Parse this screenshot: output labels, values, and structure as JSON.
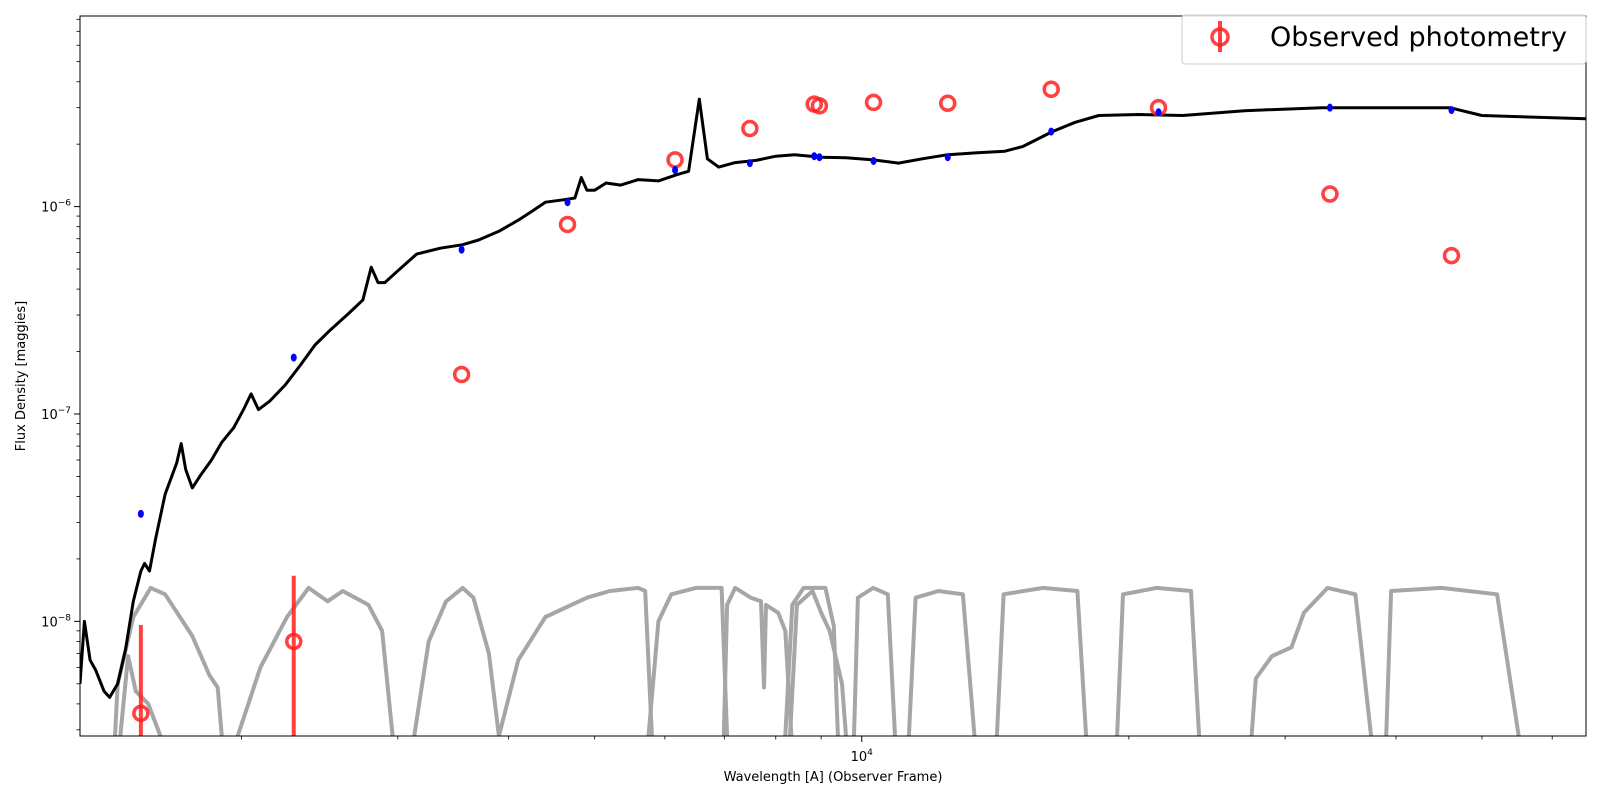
{
  "chart_data": {
    "type": "scatter",
    "xlabel": "Wavelength [A] (Observer Frame)",
    "ylabel": "Flux Density [maggies]",
    "xscale": "log",
    "yscale": "log",
    "xlim": [
      1315,
      65500
    ],
    "ylim": [
      2.8e-09,
      8.3e-06
    ],
    "x_tick_labels": [
      {
        "value": 10000,
        "label": "10",
        "sup": "4"
      }
    ],
    "y_tick_labels": [
      {
        "value": 1e-08,
        "label": "10",
        "sup": "−8"
      },
      {
        "value": 1e-07,
        "label": "10",
        "sup": "−7"
      },
      {
        "value": 1e-06,
        "label": "10",
        "sup": "−6"
      }
    ],
    "legend": {
      "placement": "top-right",
      "entries": [
        {
          "label": "Observed photometry",
          "color": "#ff2020"
        }
      ]
    },
    "colors": {
      "observed": "#ff2020",
      "model_photometry": "#0000ff",
      "model_spectrum": "#000000",
      "filters": "#a6a6a6"
    },
    "observed_photometry": [
      {
        "x": 1540,
        "y": 3.6e-09,
        "yerr_low": 3.6e-09,
        "yerr_high": 6e-09
      },
      {
        "x": 2290,
        "y": 8e-09,
        "yerr_low": 5.2e-09,
        "yerr_high": 8.6e-09
      },
      {
        "x": 3540,
        "y": 1.55e-07,
        "yerr_low": 0,
        "yerr_high": 0
      },
      {
        "x": 4660,
        "y": 8.2e-07,
        "yerr_low": 0,
        "yerr_high": 0
      },
      {
        "x": 6160,
        "y": 1.68e-06,
        "yerr_low": 0,
        "yerr_high": 0
      },
      {
        "x": 7480,
        "y": 2.38e-06,
        "yerr_low": 0,
        "yerr_high": 0
      },
      {
        "x": 8840,
        "y": 3.12e-06,
        "yerr_low": 0,
        "yerr_high": 0
      },
      {
        "x": 8960,
        "y": 3.06e-06,
        "yerr_low": 0,
        "yerr_high": 0
      },
      {
        "x": 10310,
        "y": 3.18e-06,
        "yerr_low": 0,
        "yerr_high": 0
      },
      {
        "x": 12500,
        "y": 3.15e-06,
        "yerr_low": 0,
        "yerr_high": 0
      },
      {
        "x": 16350,
        "y": 3.68e-06,
        "yerr_low": 0,
        "yerr_high": 0
      },
      {
        "x": 21600,
        "y": 3e-06,
        "yerr_low": 0,
        "yerr_high": 0
      },
      {
        "x": 33700,
        "y": 1.15e-06,
        "yerr_low": 0,
        "yerr_high": 0
      },
      {
        "x": 46200,
        "y": 5.8e-07,
        "yerr_low": 0,
        "yerr_high": 0
      }
    ],
    "model_photometry": [
      {
        "x": 1540,
        "y": 3.3e-08
      },
      {
        "x": 2290,
        "y": 1.87e-07
      },
      {
        "x": 3540,
        "y": 6.2e-07
      },
      {
        "x": 4660,
        "y": 1.05e-06
      },
      {
        "x": 6160,
        "y": 1.5e-06
      },
      {
        "x": 7480,
        "y": 1.62e-06
      },
      {
        "x": 8840,
        "y": 1.75e-06
      },
      {
        "x": 8960,
        "y": 1.73e-06
      },
      {
        "x": 10310,
        "y": 1.66e-06
      },
      {
        "x": 12500,
        "y": 1.73e-06
      },
      {
        "x": 16350,
        "y": 2.3e-06
      },
      {
        "x": 21600,
        "y": 2.85e-06
      },
      {
        "x": 33700,
        "y": 3e-06
      },
      {
        "x": 46200,
        "y": 2.92e-06
      }
    ],
    "model_spectrum": [
      [
        1315,
        5e-09
      ],
      [
        1330,
        1e-08
      ],
      [
        1350,
        6.5e-09
      ],
      [
        1370,
        5.8e-09
      ],
      [
        1400,
        4.6e-09
      ],
      [
        1420,
        4.3e-09
      ],
      [
        1450,
        5e-09
      ],
      [
        1480,
        7.3e-09
      ],
      [
        1510,
        1.25e-08
      ],
      [
        1540,
        1.75e-08
      ],
      [
        1555,
        1.9e-08
      ],
      [
        1575,
        1.75e-08
      ],
      [
        1600,
        2.5e-08
      ],
      [
        1640,
        4.1e-08
      ],
      [
        1690,
        5.8e-08
      ],
      [
        1710,
        7.2e-08
      ],
      [
        1730,
        5.4e-08
      ],
      [
        1760,
        4.4e-08
      ],
      [
        1800,
        5.1e-08
      ],
      [
        1850,
        6e-08
      ],
      [
        1900,
        7.3e-08
      ],
      [
        1960,
        8.6e-08
      ],
      [
        2010,
        1.05e-07
      ],
      [
        2050,
        1.25e-07
      ],
      [
        2090,
        1.05e-07
      ],
      [
        2150,
        1.15e-07
      ],
      [
        2240,
        1.38e-07
      ],
      [
        2330,
        1.72e-07
      ],
      [
        2420,
        2.15e-07
      ],
      [
        2520,
        2.55e-07
      ],
      [
        2640,
        3.05e-07
      ],
      [
        2740,
        3.55e-07
      ],
      [
        2800,
        5.1e-07
      ],
      [
        2850,
        4.3e-07
      ],
      [
        2900,
        4.3e-07
      ],
      [
        3000,
        4.9e-07
      ],
      [
        3150,
        5.9e-07
      ],
      [
        3350,
        6.3e-07
      ],
      [
        3550,
        6.55e-07
      ],
      [
        3700,
        6.9e-07
      ],
      [
        3900,
        7.6e-07
      ],
      [
        4100,
        8.6e-07
      ],
      [
        4250,
        9.5e-07
      ],
      [
        4400,
        1.05e-06
      ],
      [
        4620,
        1.08e-06
      ],
      [
        4750,
        1.1e-06
      ],
      [
        4830,
        1.38e-06
      ],
      [
        4900,
        1.2e-06
      ],
      [
        5000,
        1.2e-06
      ],
      [
        5150,
        1.3e-06
      ],
      [
        5350,
        1.27e-06
      ],
      [
        5600,
        1.35e-06
      ],
      [
        5900,
        1.33e-06
      ],
      [
        6200,
        1.43e-06
      ],
      [
        6380,
        1.48e-06
      ],
      [
        6560,
        3.3e-06
      ],
      [
        6700,
        1.7e-06
      ],
      [
        6900,
        1.55e-06
      ],
      [
        7200,
        1.63e-06
      ],
      [
        7600,
        1.67e-06
      ],
      [
        8000,
        1.75e-06
      ],
      [
        8400,
        1.78e-06
      ],
      [
        9000,
        1.73e-06
      ],
      [
        9600,
        1.72e-06
      ],
      [
        10300,
        1.68e-06
      ],
      [
        11000,
        1.62e-06
      ],
      [
        11700,
        1.7e-06
      ],
      [
        12500,
        1.78e-06
      ],
      [
        13500,
        1.82e-06
      ],
      [
        14500,
        1.85e-06
      ],
      [
        15200,
        1.95e-06
      ],
      [
        16400,
        2.3e-06
      ],
      [
        17400,
        2.55e-06
      ],
      [
        18500,
        2.75e-06
      ],
      [
        20500,
        2.78e-06
      ],
      [
        23000,
        2.75e-06
      ],
      [
        27000,
        2.9e-06
      ],
      [
        33000,
        3e-06
      ],
      [
        40000,
        3e-06
      ],
      [
        46000,
        3e-06
      ],
      [
        50000,
        2.75e-06
      ],
      [
        57000,
        2.7e-06
      ],
      [
        65500,
        2.65e-06
      ]
    ],
    "filter_curves": [
      [
        [
          1440,
          2.8e-09
        ],
        [
          1450,
          5e-09
        ],
        [
          1475,
          6.8e-09
        ],
        [
          1510,
          1.05e-08
        ],
        [
          1580,
          1.45e-08
        ],
        [
          1640,
          1.35e-08
        ],
        [
          1760,
          8.5e-09
        ],
        [
          1840,
          5.5e-09
        ],
        [
          1880,
          4.8e-09
        ],
        [
          1900,
          2.8e-09
        ]
      ],
      [
        [
          1460,
          2.8e-09
        ],
        [
          1490,
          6.8e-09
        ],
        [
          1520,
          4.6e-09
        ],
        [
          1570,
          4e-09
        ],
        [
          1620,
          2.8e-09
        ]
      ],
      [
        [
          1980,
          2.8e-09
        ],
        [
          2100,
          6e-09
        ],
        [
          2250,
          1.05e-08
        ],
        [
          2380,
          1.45e-08
        ],
        [
          2500,
          1.25e-08
        ],
        [
          2600,
          1.4e-08
        ],
        [
          2780,
          1.2e-08
        ],
        [
          2880,
          9e-09
        ],
        [
          2960,
          2.8e-09
        ]
      ],
      [
        [
          3130,
          2.8e-09
        ],
        [
          3250,
          8e-09
        ],
        [
          3400,
          1.25e-08
        ],
        [
          3550,
          1.45e-08
        ],
        [
          3650,
          1.3e-08
        ],
        [
          3800,
          7e-09
        ],
        [
          3900,
          2.8e-09
        ]
      ],
      [
        [
          3900,
          2.8e-09
        ],
        [
          4100,
          6.5e-09
        ],
        [
          4400,
          1.05e-08
        ],
        [
          4900,
          1.3e-08
        ],
        [
          5200,
          1.4e-08
        ],
        [
          5600,
          1.45e-08
        ],
        [
          5700,
          1.4e-08
        ],
        [
          5800,
          2.8e-09
        ]
      ],
      [
        [
          5750,
          2.8e-09
        ],
        [
          5900,
          1e-08
        ],
        [
          6100,
          1.35e-08
        ],
        [
          6500,
          1.45e-08
        ],
        [
          6950,
          1.45e-08
        ],
        [
          7050,
          2.8e-09
        ]
      ],
      [
        [
          6990,
          2.8e-09
        ],
        [
          7050,
          1.2e-08
        ],
        [
          7200,
          1.45e-08
        ],
        [
          7500,
          1.3e-08
        ],
        [
          7700,
          1.25e-08
        ],
        [
          7760,
          4.8e-09
        ],
        [
          7800,
          1.2e-08
        ],
        [
          8050,
          1.1e-08
        ],
        [
          8200,
          9e-09
        ],
        [
          8330,
          2.8e-09
        ]
      ],
      [
        [
          8200,
          2.8e-09
        ],
        [
          8350,
          1.2e-08
        ],
        [
          8600,
          1.45e-08
        ],
        [
          9100,
          1.45e-08
        ],
        [
          9300,
          9.5e-09
        ],
        [
          9400,
          2.8e-09
        ]
      ],
      [
        [
          8300,
          2.8e-09
        ],
        [
          8450,
          1.2e-08
        ],
        [
          8800,
          1.4e-08
        ],
        [
          9000,
          1.1e-08
        ],
        [
          9200,
          9e-09
        ],
        [
          9500,
          5e-09
        ],
        [
          9600,
          2.8e-09
        ]
      ],
      [
        [
          9800,
          2.8e-09
        ],
        [
          9900,
          1.3e-08
        ],
        [
          10300,
          1.45e-08
        ],
        [
          10700,
          1.35e-08
        ],
        [
          10900,
          2.8e-09
        ]
      ],
      [
        [
          11300,
          2.8e-09
        ],
        [
          11500,
          1.3e-08
        ],
        [
          12200,
          1.4e-08
        ],
        [
          13000,
          1.35e-08
        ],
        [
          13400,
          2.8e-09
        ]
      ],
      [
        [
          14200,
          2.8e-09
        ],
        [
          14450,
          1.35e-08
        ],
        [
          16000,
          1.45e-08
        ],
        [
          17500,
          1.4e-08
        ],
        [
          17900,
          2.8e-09
        ]
      ],
      [
        [
          19400,
          2.8e-09
        ],
        [
          19700,
          1.35e-08
        ],
        [
          21500,
          1.45e-08
        ],
        [
          23500,
          1.4e-08
        ],
        [
          24000,
          2.8e-09
        ]
      ],
      [
        [
          27500,
          2.8e-09
        ],
        [
          27800,
          5.3e-09
        ],
        [
          29000,
          6.8e-09
        ],
        [
          30500,
          7.5e-09
        ],
        [
          31500,
          1.1e-08
        ],
        [
          33500,
          1.45e-08
        ],
        [
          36000,
          1.35e-08
        ],
        [
          37500,
          2.8e-09
        ]
      ],
      [
        [
          39000,
          2.8e-09
        ],
        [
          39500,
          1.4e-08
        ],
        [
          45000,
          1.45e-08
        ],
        [
          52000,
          1.35e-08
        ],
        [
          55000,
          2.8e-09
        ]
      ]
    ]
  }
}
